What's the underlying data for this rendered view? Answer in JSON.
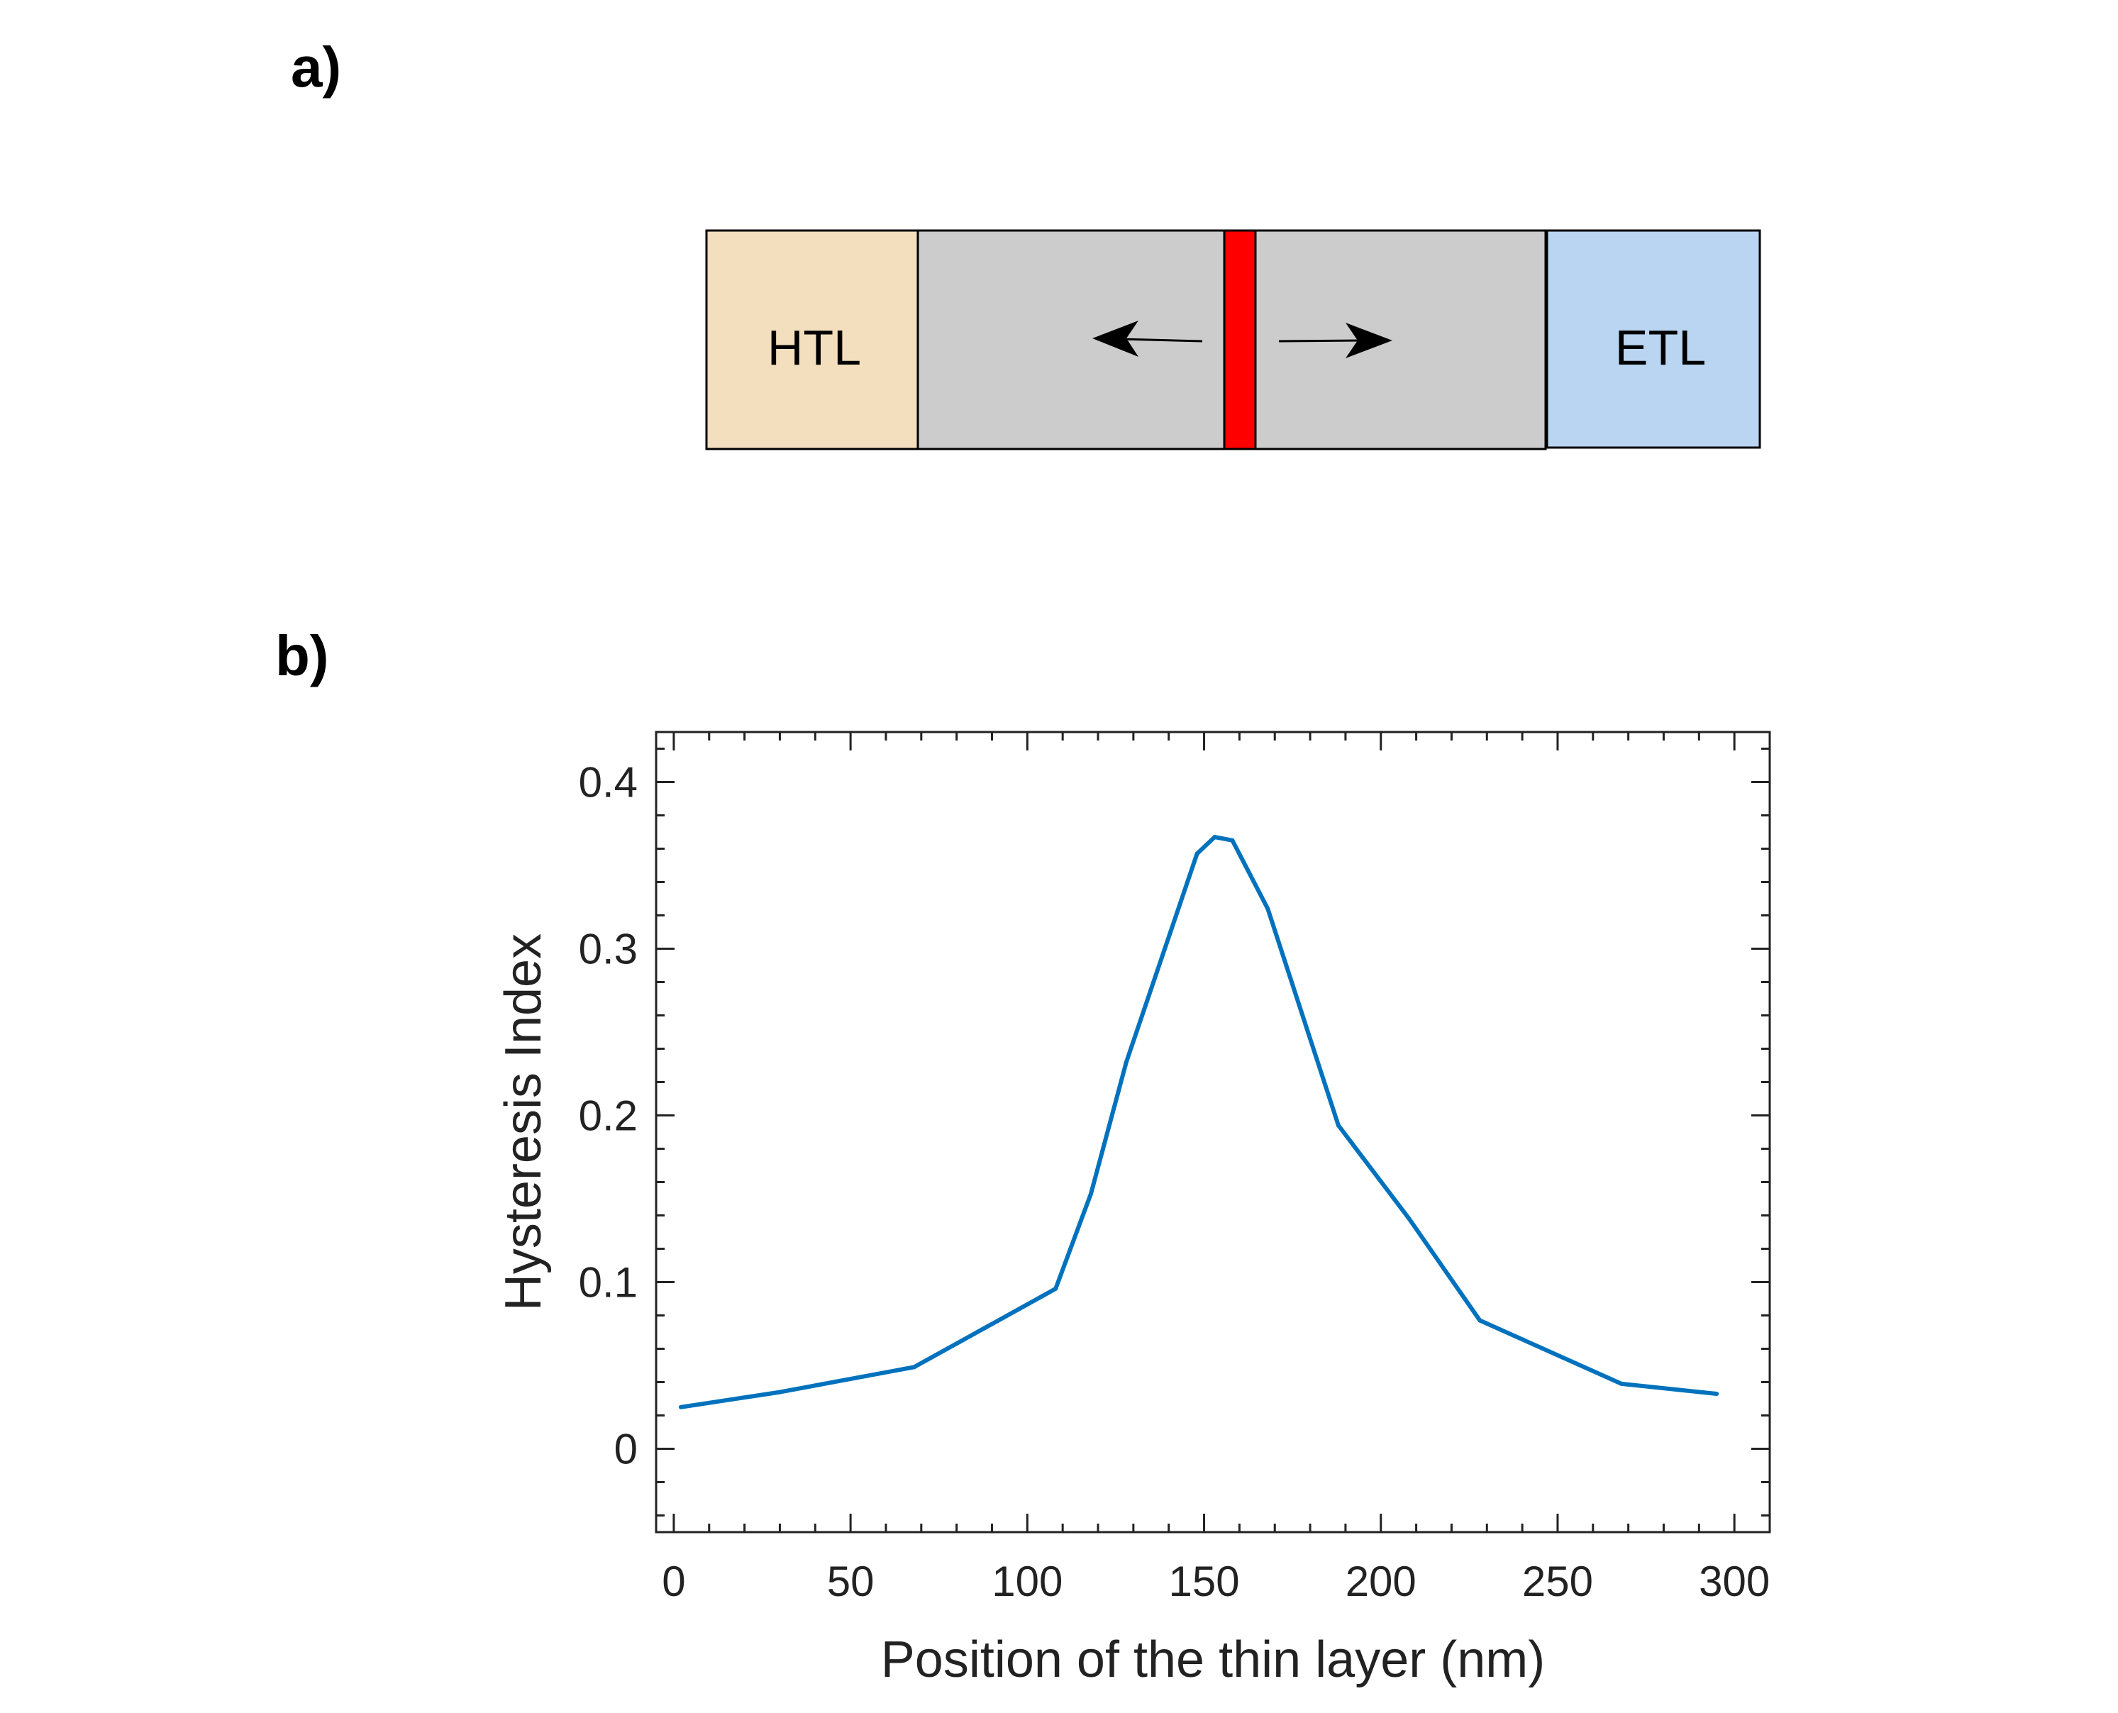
{
  "panels": {
    "a_label": "a)",
    "b_label": "b)"
  },
  "diagram": {
    "htl_label": "HTL",
    "etl_label": "ETL",
    "colors": {
      "htl": "#f3dfbd",
      "perovskite": "#cccccc",
      "thin_layer": "#ff0000",
      "etl": "#bad5f2",
      "arrow": "#000000"
    }
  },
  "chart_data": {
    "type": "line",
    "title": "",
    "xlabel": "Position of the thin layer (nm)",
    "ylabel": "Hysteresis Index",
    "xlim": [
      -5,
      310
    ],
    "ylim": [
      -0.05,
      0.43
    ],
    "xticks": [
      0,
      50,
      100,
      150,
      200,
      250,
      300
    ],
    "yticks": [
      0,
      0.1,
      0.2,
      0.3,
      0.4
    ],
    "xtick_labels": [
      "0",
      "50",
      "100",
      "150",
      "200",
      "250",
      "300"
    ],
    "ytick_labels": [
      "0",
      "0.1",
      "0.2",
      "0.3",
      "0.4"
    ],
    "grid": false,
    "series": [
      {
        "name": "Hysteresis Index",
        "color": "#0072bd",
        "x": [
          2,
          30,
          68,
          108,
          118,
          128,
          148,
          153,
          158,
          168,
          188,
          208,
          228,
          268,
          295
        ],
        "y": [
          0.025,
          0.034,
          0.049,
          0.096,
          0.153,
          0.232,
          0.357,
          0.367,
          0.365,
          0.324,
          0.194,
          0.138,
          0.077,
          0.039,
          0.033
        ]
      }
    ]
  }
}
